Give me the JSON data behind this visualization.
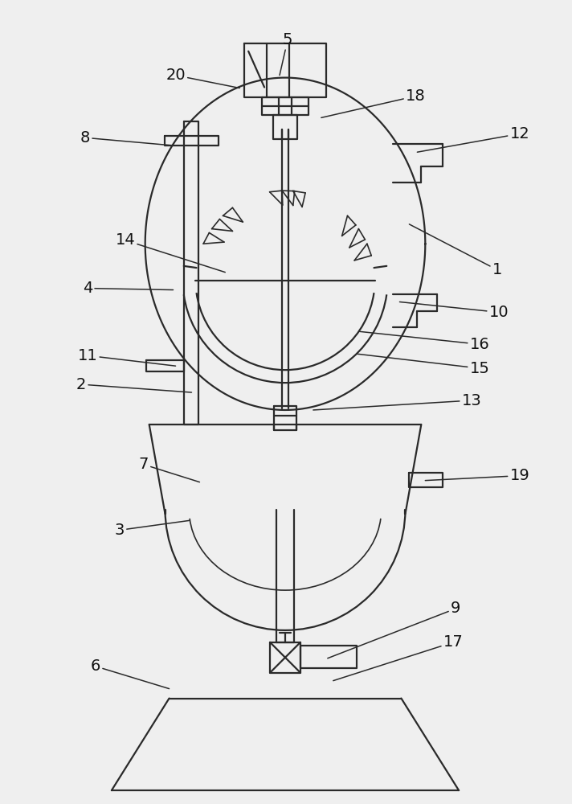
{
  "bg_color": "#efefef",
  "line_color": "#2a2a2a",
  "lw": 1.6,
  "lw_thin": 1.2,
  "fig_w": 7.12,
  "fig_h": 10.0,
  "dpi": 100,
  "annotations": [
    [
      "1",
      620,
      335,
      510,
      278
    ],
    [
      "2",
      100,
      478,
      238,
      488
    ],
    [
      "3",
      148,
      660,
      235,
      648
    ],
    [
      "4",
      108,
      358,
      215,
      360
    ],
    [
      "5",
      358,
      48,
      348,
      92
    ],
    [
      "6",
      118,
      830,
      210,
      858
    ],
    [
      "7",
      178,
      578,
      248,
      600
    ],
    [
      "8",
      105,
      170,
      218,
      180
    ],
    [
      "9",
      568,
      758,
      408,
      820
    ],
    [
      "10",
      622,
      388,
      498,
      375
    ],
    [
      "11",
      108,
      442,
      218,
      455
    ],
    [
      "12",
      648,
      165,
      520,
      188
    ],
    [
      "13",
      588,
      498,
      390,
      510
    ],
    [
      "14",
      155,
      298,
      280,
      338
    ],
    [
      "15",
      598,
      458,
      445,
      440
    ],
    [
      "16",
      598,
      428,
      448,
      412
    ],
    [
      "17",
      565,
      800,
      415,
      848
    ],
    [
      "18",
      518,
      118,
      400,
      145
    ],
    [
      "19",
      648,
      592,
      530,
      598
    ],
    [
      "20",
      218,
      92,
      298,
      108
    ]
  ]
}
